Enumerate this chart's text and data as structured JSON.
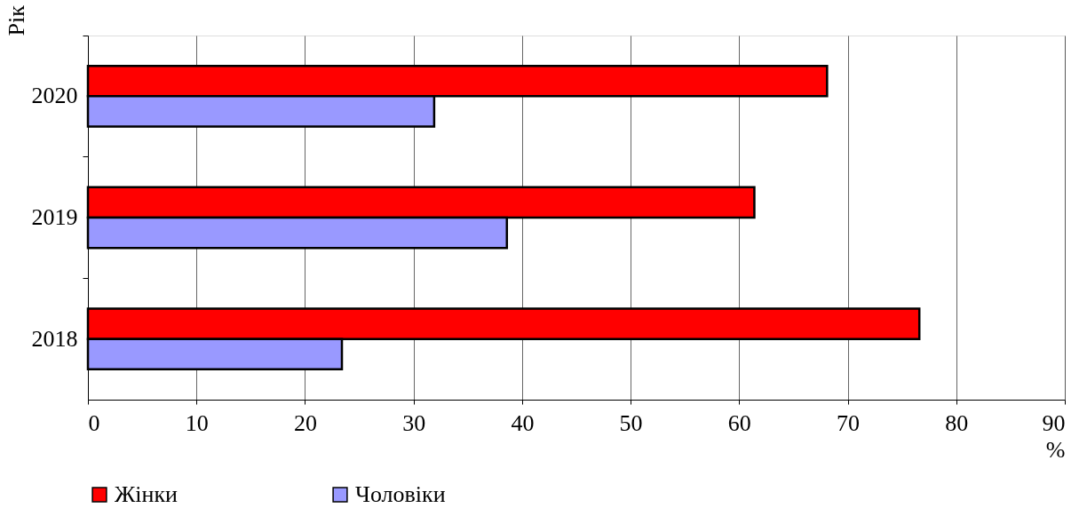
{
  "chart_data": {
    "type": "bar",
    "orientation": "horizontal",
    "categories": [
      "2020",
      "2019",
      "2018"
    ],
    "series": [
      {
        "name": "Жінки",
        "color": "#ff0000",
        "values": [
          68.1,
          61.4,
          76.6
        ]
      },
      {
        "name": "Чоловіки",
        "color": "#9999ff",
        "values": [
          31.9,
          38.6,
          23.4
        ]
      }
    ],
    "xlim": [
      0,
      90
    ],
    "xticks": [
      0,
      10,
      20,
      30,
      40,
      50,
      60,
      70,
      80,
      90
    ],
    "xlabel": "%",
    "ylabel": "Рік",
    "grid": "x",
    "legend": "bottom"
  }
}
